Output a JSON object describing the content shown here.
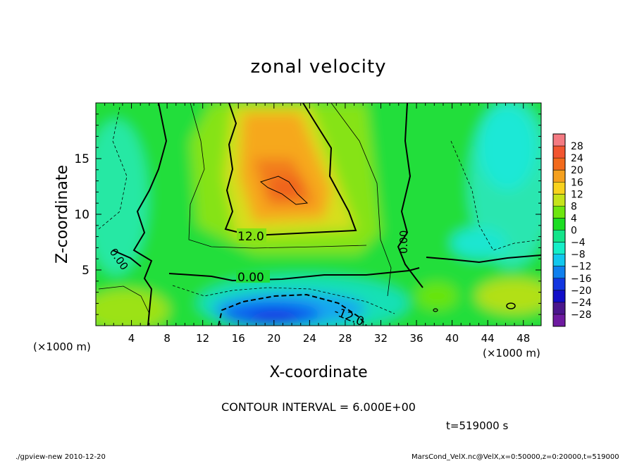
{
  "chart_data": {
    "type": "heatmap",
    "title": "zonal velocity",
    "xlabel": "X-coordinate",
    "ylabel": "Z-coordinate",
    "x_unit": "(×1000 m)",
    "xlim": [
      0,
      50
    ],
    "ylim": [
      0,
      20
    ],
    "x_ticks": [
      "4",
      "8",
      "12",
      "16",
      "20",
      "24",
      "28",
      "32",
      "36",
      "40",
      "44",
      "48"
    ],
    "y_ticks": [
      "5",
      "10",
      "15"
    ],
    "colorbar": {
      "levels": [
        "28",
        "24",
        "20",
        "16",
        "12",
        "8",
        "4",
        "0",
        "−4",
        "−8",
        "−12",
        "−16",
        "−20",
        "−24",
        "−28"
      ],
      "colors": [
        "#f47a82",
        "#f25530",
        "#f26a1c",
        "#f5a01e",
        "#f8d21e",
        "#c6e31a",
        "#6ee60f",
        "#1cdd22",
        "#14e48a",
        "#16eec8",
        "#12c8ee",
        "#1080ee",
        "#1236e0",
        "#120ec8",
        "#4b168c",
        "#6e1aa0"
      ]
    },
    "contour_labels": [
      "12.0",
      "0.00",
      "0.00",
      "0.00",
      "-12.0"
    ],
    "contour_interval": "CONTOUR INTERVAL = 6.000E+00",
    "time": "t=519000 s"
  },
  "footer": {
    "left": "./gpview-new  2010-12-20",
    "right": "MarsCond_VelX.nc@VelX,x=0:50000,z=0:20000,t=519000"
  }
}
